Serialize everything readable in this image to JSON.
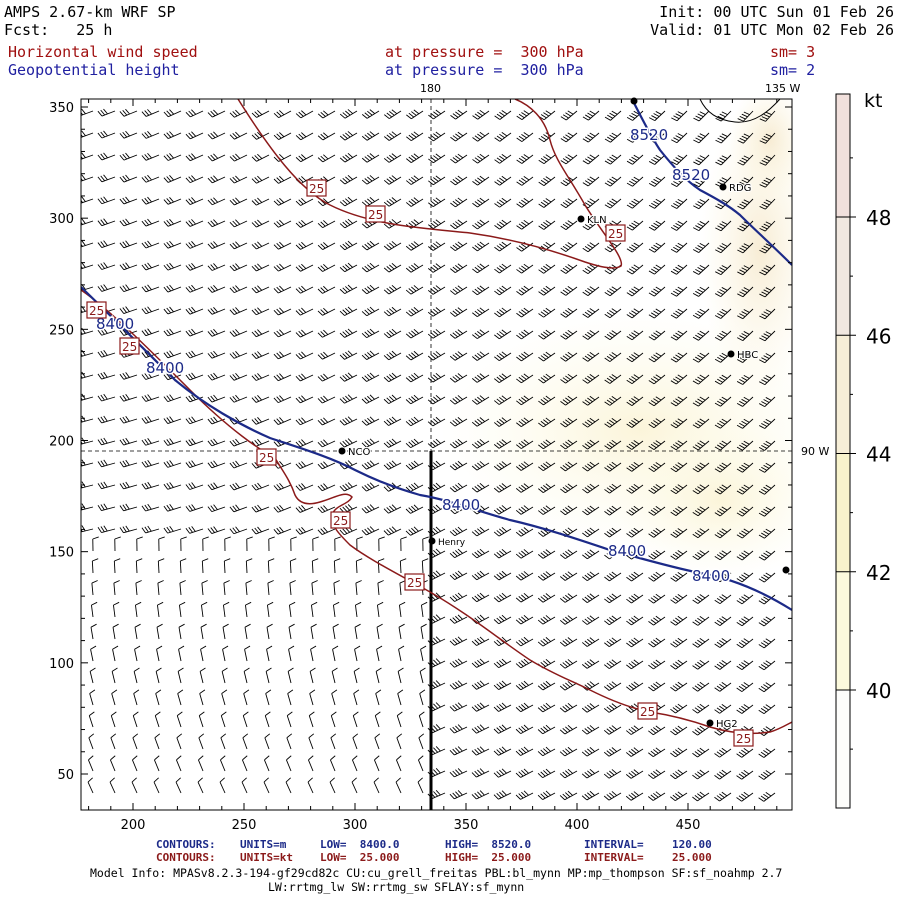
{
  "header": {
    "model_title": "AMPS 2.67-km WRF SP",
    "forecast": "Fcst:   25 h",
    "init": "Init: 00 UTC Sun 01 Feb 26",
    "valid": "Valid: 01 UTC Mon 02 Feb 26",
    "field1_name": "Horizontal wind speed",
    "field1_level": "at pressure =  300 hPa",
    "field1_sm": "sm= 3",
    "field2_name": "Geopotential height",
    "field2_level": "at pressure =  300 hPa",
    "field2_sm": "sm= 2"
  },
  "map": {
    "lon_labels": [
      "180",
      "135 W",
      "90 W"
    ],
    "y_ticks": [
      "350",
      "300",
      "250",
      "200",
      "150",
      "100",
      "50"
    ],
    "x_ticks": [
      "200",
      "250",
      "300",
      "350",
      "400",
      "450"
    ],
    "stations": [
      "KLN",
      "RDG",
      "HBC",
      "NCO",
      "Henry",
      "HG2"
    ],
    "height_contour_labels": [
      "8520",
      "8520",
      "8400",
      "8400",
      "8400",
      "8400",
      "8400"
    ],
    "speed_contour_label": "25"
  },
  "colorbar": {
    "unit": "kt",
    "ticks": [
      "48",
      "46",
      "44",
      "42",
      "40"
    ],
    "colors": [
      "#fdfdfb",
      "#fcfadd",
      "#f8f3cc",
      "#f6eed7",
      "#f1e0dc"
    ]
  },
  "footer": {
    "row1": {
      "label": "CONTOURS:",
      "units": "UNITS=m",
      "low": "LOW=  8400.0",
      "high": "HIGH=  8520.0",
      "interval": "INTERVAL=",
      "interval_val": "120.00"
    },
    "row2": {
      "label": "CONTOURS:",
      "units": "UNITS=kt",
      "low": "LOW=  25.000",
      "high": "HIGH=  25.000",
      "interval": "INTERVAL=",
      "interval_val": "25.000"
    },
    "model_info": "Model Info: MPASv8.2.3-194-gf29cd82c CU:cu_grell_freitas PBL:bl_mynn MP:mp_thompson SF:sf_noahmp 2.7",
    "model_info2": "LW:rrtmg_lw SW:rrtmg_sw SFLAY:sf_mynn"
  }
}
